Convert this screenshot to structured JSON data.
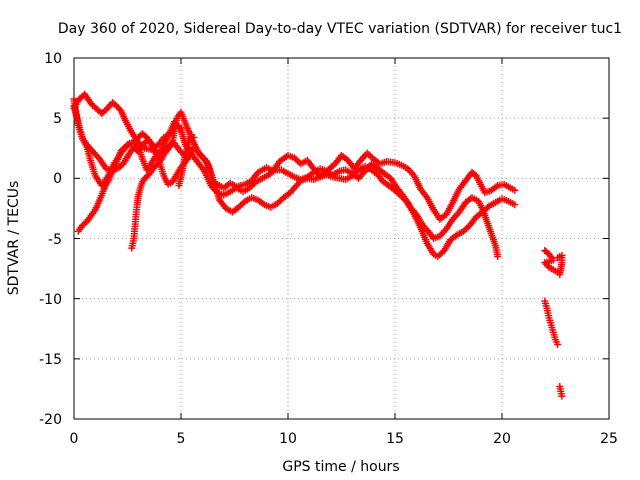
{
  "chart_data": {
    "type": "scatter",
    "title": "Day 360 of 2020, Sidereal Day-to-day VTEC variation (SDTVAR) for receiver tuc1",
    "xlabel": "GPS time / hours",
    "ylabel": "SDTVAR / TECUs",
    "xlim": [
      0,
      25
    ],
    "ylim": [
      -20,
      10
    ],
    "xticks": [
      0,
      5,
      10,
      15,
      20,
      25
    ],
    "yticks": [
      -20,
      -15,
      -10,
      -5,
      0,
      5,
      10
    ],
    "xtick_labels": [
      "0",
      "5",
      "10",
      "15",
      "20",
      "25"
    ],
    "ytick_labels": [
      "-20",
      "-15",
      "-10",
      "-5",
      "0",
      "5",
      "10"
    ],
    "grid": true,
    "marker": "plus",
    "color": "#ff0000",
    "series": [
      {
        "name": "track-a",
        "points": [
          [
            0.0,
            5.8
          ],
          [
            0.2,
            6.5
          ],
          [
            0.5,
            7.0
          ],
          [
            0.8,
            6.2
          ],
          [
            1.1,
            5.7
          ],
          [
            1.3,
            5.4
          ],
          [
            1.5,
            5.7
          ],
          [
            1.8,
            6.3
          ],
          [
            2.0,
            6.0
          ],
          [
            2.2,
            5.6
          ],
          [
            2.4,
            4.8
          ],
          [
            2.7,
            3.8
          ],
          [
            3.0,
            3.0
          ],
          [
            3.3,
            2.5
          ],
          [
            3.6,
            2.4
          ],
          [
            4.0,
            2.0
          ],
          [
            4.3,
            2.2
          ],
          [
            4.6,
            3.0
          ],
          [
            4.8,
            5.0
          ],
          [
            5.0,
            5.5
          ],
          [
            5.2,
            4.6
          ],
          [
            5.5,
            3.3
          ],
          [
            5.8,
            2.2
          ],
          [
            6.1,
            1.6
          ],
          [
            6.3,
            1.0
          ],
          [
            6.5,
            -0.3
          ],
          [
            6.8,
            -0.6
          ],
          [
            7.0,
            -0.8
          ],
          [
            7.3,
            -0.4
          ],
          [
            7.6,
            -0.7
          ],
          [
            8.0,
            -0.5
          ],
          [
            8.3,
            -0.2
          ],
          [
            8.6,
            0.5
          ],
          [
            9.0,
            0.9
          ],
          [
            9.3,
            0.6
          ],
          [
            9.6,
            1.4
          ],
          [
            10.0,
            1.9
          ],
          [
            10.3,
            1.7
          ],
          [
            10.6,
            1.2
          ],
          [
            10.9,
            1.5
          ],
          [
            11.2,
            0.8
          ],
          [
            11.5,
            0.2
          ],
          [
            11.8,
            0.6
          ],
          [
            12.2,
            1.2
          ],
          [
            12.5,
            1.9
          ],
          [
            12.8,
            1.5
          ],
          [
            13.1,
            0.8
          ],
          [
            13.4,
            1.5
          ],
          [
            13.7,
            2.1
          ],
          [
            14.0,
            1.6
          ],
          [
            14.3,
            1.2
          ],
          [
            14.6,
            1.4
          ],
          [
            15.0,
            1.3
          ],
          [
            15.3,
            1.1
          ],
          [
            15.6,
            0.8
          ],
          [
            15.9,
            0.2
          ],
          [
            16.2,
            -0.9
          ],
          [
            16.5,
            -1.6
          ],
          [
            16.8,
            -2.6
          ],
          [
            17.1,
            -3.4
          ],
          [
            17.4,
            -3.0
          ],
          [
            17.7,
            -2.0
          ],
          [
            18.0,
            -0.9
          ],
          [
            18.3,
            -0.2
          ],
          [
            18.6,
            0.5
          ],
          [
            18.8,
            0.2
          ],
          [
            19.0,
            -0.5
          ],
          [
            19.2,
            -1.2
          ],
          [
            19.5,
            -1.0
          ],
          [
            19.8,
            -0.6
          ],
          [
            20.1,
            -0.5
          ],
          [
            20.4,
            -0.8
          ],
          [
            20.6,
            -1.0
          ]
        ]
      },
      {
        "name": "track-b",
        "points": [
          [
            0.0,
            6.0
          ],
          [
            0.2,
            4.6
          ],
          [
            0.4,
            3.3
          ],
          [
            0.6,
            2.6
          ],
          [
            0.8,
            1.3
          ],
          [
            1.0,
            0.2
          ],
          [
            1.3,
            -0.6
          ],
          [
            1.6,
            0.2
          ],
          [
            1.9,
            1.3
          ],
          [
            2.2,
            2.1
          ],
          [
            2.5,
            2.8
          ],
          [
            2.8,
            3.0
          ],
          [
            3.0,
            2.7
          ],
          [
            3.2,
            1.6
          ],
          [
            3.4,
            0.7
          ],
          [
            3.6,
            1.2
          ],
          [
            3.8,
            1.8
          ],
          [
            4.1,
            2.4
          ],
          [
            4.4,
            3.5
          ],
          [
            4.7,
            4.7
          ],
          [
            5.0,
            4.0
          ],
          [
            5.2,
            2.8
          ],
          [
            5.5,
            2.0
          ],
          [
            5.8,
            1.3
          ],
          [
            6.1,
            0.6
          ],
          [
            6.4,
            -0.6
          ],
          [
            6.7,
            -1.2
          ],
          [
            7.0,
            -1.4
          ],
          [
            7.3,
            -1.1
          ],
          [
            7.6,
            -0.8
          ],
          [
            7.9,
            -1.1
          ],
          [
            8.2,
            -0.8
          ],
          [
            8.5,
            -0.3
          ],
          [
            8.8,
            0.0
          ],
          [
            9.1,
            0.3
          ],
          [
            9.4,
            0.7
          ],
          [
            9.7,
            0.7
          ],
          [
            10.0,
            0.4
          ],
          [
            10.3,
            0.1
          ],
          [
            10.6,
            -0.1
          ],
          [
            10.9,
            0.1
          ],
          [
            11.2,
            0.5
          ],
          [
            11.5,
            0.8
          ],
          [
            11.8,
            0.6
          ],
          [
            12.1,
            0.3
          ],
          [
            12.4,
            0.6
          ],
          [
            12.7,
            0.7
          ],
          [
            13.0,
            0.4
          ],
          [
            13.3,
            0.0
          ],
          [
            13.6,
            0.6
          ],
          [
            13.9,
            1.2
          ],
          [
            14.2,
            0.8
          ],
          [
            14.5,
            0.4
          ],
          [
            14.8,
            0.0
          ],
          [
            15.1,
            -0.8
          ],
          [
            15.4,
            -1.5
          ],
          [
            15.7,
            -2.4
          ],
          [
            16.0,
            -3.0
          ],
          [
            16.3,
            -3.9
          ],
          [
            16.6,
            -4.5
          ],
          [
            16.8,
            -5.0
          ],
          [
            17.1,
            -4.8
          ],
          [
            17.4,
            -4.2
          ],
          [
            17.7,
            -3.4
          ],
          [
            18.0,
            -2.8
          ],
          [
            18.3,
            -2.0
          ],
          [
            18.6,
            -1.6
          ],
          [
            18.9,
            -1.9
          ],
          [
            19.1,
            -2.6
          ],
          [
            19.3,
            -3.6
          ],
          [
            19.5,
            -4.6
          ],
          [
            19.7,
            -5.6
          ],
          [
            19.8,
            -6.5
          ]
        ]
      },
      {
        "name": "track-c",
        "points": [
          [
            0.0,
            6.6
          ],
          [
            0.1,
            5.4
          ],
          [
            0.2,
            4.4
          ],
          [
            0.4,
            3.3
          ],
          [
            0.6,
            2.8
          ],
          [
            0.8,
            2.4
          ],
          [
            1.0,
            2.0
          ],
          [
            1.2,
            1.6
          ],
          [
            1.5,
            0.8
          ],
          [
            1.8,
            0.6
          ],
          [
            2.1,
            0.9
          ],
          [
            2.3,
            1.2
          ],
          [
            2.6,
            2.1
          ],
          [
            2.8,
            2.6
          ],
          [
            3.0,
            2.2
          ],
          [
            3.2,
            2.8
          ],
          [
            3.5,
            3.2
          ],
          [
            3.8,
            2.2
          ],
          [
            4.0,
            1.3
          ],
          [
            4.2,
            0.2
          ],
          [
            4.4,
            -0.5
          ],
          [
            4.6,
            -0.3
          ],
          [
            4.8,
            0.3
          ],
          [
            5.0,
            0.9
          ],
          [
            5.3,
            1.6
          ],
          [
            5.6,
            2.6
          ],
          [
            5.9,
            1.9
          ],
          [
            6.2,
            1.4
          ],
          [
            6.5,
            -0.1
          ],
          [
            6.8,
            -1.8
          ],
          [
            7.1,
            -2.5
          ],
          [
            7.4,
            -2.8
          ],
          [
            7.7,
            -2.4
          ],
          [
            8.0,
            -1.9
          ],
          [
            8.3,
            -1.6
          ],
          [
            8.6,
            -1.8
          ],
          [
            8.9,
            -2.2
          ],
          [
            9.2,
            -2.4
          ],
          [
            9.5,
            -2.1
          ],
          [
            9.8,
            -1.6
          ],
          [
            10.1,
            -1.2
          ],
          [
            10.4,
            -0.6
          ],
          [
            10.6,
            -0.2
          ],
          [
            10.9,
            0.0
          ],
          [
            11.2,
            -0.1
          ],
          [
            11.5,
            0.1
          ],
          [
            11.8,
            0.3
          ],
          [
            12.1,
            0.1
          ],
          [
            12.4,
            0.0
          ],
          [
            12.7,
            -0.1
          ],
          [
            13.0,
            0.2
          ],
          [
            13.3,
            0.7
          ],
          [
            13.6,
            1.0
          ],
          [
            13.9,
            0.7
          ],
          [
            14.2,
            0.3
          ],
          [
            14.4,
            -0.2
          ],
          [
            14.7,
            -0.6
          ],
          [
            15.0,
            -1.0
          ],
          [
            15.3,
            -1.5
          ],
          [
            15.6,
            -2.0
          ],
          [
            15.9,
            -3.0
          ],
          [
            16.2,
            -4.1
          ],
          [
            16.5,
            -5.4
          ],
          [
            16.8,
            -6.3
          ],
          [
            17.0,
            -6.5
          ],
          [
            17.3,
            -6.0
          ],
          [
            17.6,
            -5.1
          ],
          [
            17.9,
            -4.7
          ],
          [
            18.2,
            -4.4
          ],
          [
            18.5,
            -3.9
          ],
          [
            18.8,
            -3.2
          ],
          [
            19.1,
            -2.8
          ],
          [
            19.4,
            -2.3
          ],
          [
            19.7,
            -2.0
          ],
          [
            20.0,
            -1.7
          ],
          [
            20.3,
            -1.9
          ],
          [
            20.6,
            -2.2
          ]
        ]
      },
      {
        "name": "track-d",
        "points": [
          [
            0.2,
            -4.4
          ],
          [
            0.4,
            -3.9
          ],
          [
            0.6,
            -3.6
          ],
          [
            0.8,
            -3.1
          ],
          [
            1.0,
            -2.6
          ],
          [
            1.2,
            -1.8
          ],
          [
            1.4,
            -0.9
          ],
          [
            1.6,
            -0.2
          ],
          [
            1.8,
            0.6
          ],
          [
            2.0,
            1.4
          ],
          [
            2.2,
            2.3
          ],
          [
            2.4,
            2.6
          ],
          [
            2.6,
            2.9
          ],
          [
            2.8,
            3.0
          ],
          [
            3.0,
            3.4
          ],
          [
            3.2,
            3.7
          ],
          [
            3.4,
            3.4
          ],
          [
            3.6,
            2.9
          ],
          [
            3.8,
            2.6
          ],
          [
            4.0,
            2.9
          ],
          [
            4.2,
            3.4
          ],
          [
            4.4,
            3.6
          ],
          [
            4.6,
            4.0
          ],
          [
            4.8,
            4.4
          ],
          [
            5.0,
            4.2
          ]
        ]
      },
      {
        "name": "track-e",
        "points": [
          [
            2.7,
            -5.8
          ],
          [
            2.8,
            -5.0
          ],
          [
            2.85,
            -4.0
          ],
          [
            2.9,
            -3.0
          ],
          [
            2.95,
            -2.2
          ],
          [
            3.0,
            -1.5
          ],
          [
            3.1,
            -0.8
          ],
          [
            3.2,
            -0.3
          ],
          [
            3.3,
            0.0
          ],
          [
            3.5,
            0.3
          ],
          [
            3.7,
            0.8
          ],
          [
            3.9,
            1.2
          ],
          [
            4.1,
            1.6
          ],
          [
            4.3,
            2.3
          ],
          [
            4.5,
            2.8
          ],
          [
            4.7,
            2.9
          ],
          [
            4.9,
            2.4
          ],
          [
            5.1,
            2.0
          ],
          [
            5.3,
            1.6
          ]
        ]
      },
      {
        "name": "track-f",
        "points": [
          [
            4.9,
            -0.6
          ],
          [
            5.0,
            0.1
          ],
          [
            5.1,
            1.0
          ],
          [
            5.2,
            1.9
          ],
          [
            5.3,
            2.6
          ],
          [
            5.4,
            3.3
          ],
          [
            5.5,
            3.6
          ],
          [
            5.6,
            3.4
          ]
        ]
      },
      {
        "name": "track-g",
        "points": [
          [
            22.0,
            -6.0
          ],
          [
            22.2,
            -6.3
          ],
          [
            22.4,
            -6.8
          ],
          [
            22.0,
            -7.0
          ],
          [
            22.2,
            -7.4
          ],
          [
            22.4,
            -7.6
          ],
          [
            22.6,
            -7.8
          ],
          [
            22.7,
            -8.0
          ],
          [
            22.8,
            -7.0
          ],
          [
            22.8,
            -6.4
          ],
          [
            22.6,
            -6.6
          ],
          [
            22.0,
            -10.2
          ],
          [
            22.1,
            -10.8
          ],
          [
            22.2,
            -11.6
          ],
          [
            22.3,
            -12.2
          ],
          [
            22.4,
            -12.8
          ],
          [
            22.5,
            -13.4
          ],
          [
            22.6,
            -13.8
          ],
          [
            22.7,
            -17.3
          ],
          [
            22.75,
            -17.7
          ],
          [
            22.8,
            -18.1
          ]
        ]
      }
    ]
  }
}
